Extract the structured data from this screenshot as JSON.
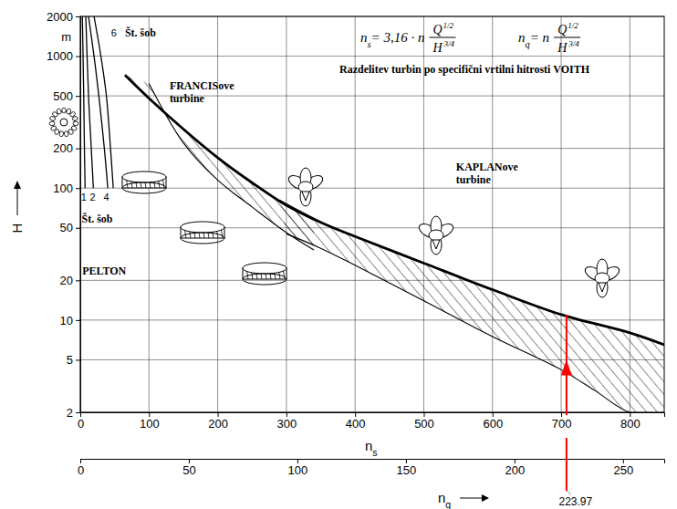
{
  "chart_data": {
    "type": "line",
    "title": "Razdelitev turbin po specifični vrtilni hitrosti VOITH",
    "formulas": [
      {
        "lhs": "ns= 3,16 · n",
        "num": "Q",
        "num_exp": "1/2",
        "den": "H",
        "den_exp": "3/4"
      },
      {
        "lhs": "nq= n",
        "num": "Q",
        "num_exp": "1/2",
        "den": "H",
        "den_exp": "3/4"
      }
    ],
    "x_label": "ns",
    "x2_label": "nq",
    "y_label": "H",
    "y_unit": "m",
    "xlim": [
      0,
      850
    ],
    "xticks": [
      0,
      100,
      200,
      300,
      400,
      500,
      600,
      700,
      800
    ],
    "x2lim": [
      0,
      269
    ],
    "x2ticks": [
      0,
      50,
      100,
      150,
      200,
      250
    ],
    "ylim": [
      2,
      2000
    ],
    "yticks": [
      2,
      5,
      10,
      20,
      50,
      100,
      200,
      500,
      1000,
      2000
    ],
    "log": "y",
    "grid": true,
    "series": [
      {
        "type": "band",
        "color": "#000000",
        "x_upper": [
          65,
          100,
          150,
          200,
          250,
          300,
          340
        ],
        "upper": [
          720,
          480,
          280,
          170,
          110,
          74,
          58
        ],
        "x_lower": [
          100,
          150,
          200,
          250,
          300,
          340
        ],
        "lower": [
          620,
          220,
          115,
          72,
          46,
          34
        ]
      },
      {
        "type": "band",
        "color": "#000000",
        "x_upper": [
          290,
          350,
          400,
          500,
          600,
          700,
          800,
          850
        ],
        "upper": [
          80,
          55,
          43,
          27,
          17,
          11,
          8,
          6.5
        ],
        "x_lower": [
          300,
          350,
          400,
          500,
          600,
          700,
          750,
          800,
          850
        ],
        "lower": [
          45,
          35,
          26,
          14,
          7.5,
          4.2,
          2.9,
          2,
          2
        ]
      },
      {
        "type": "line",
        "color": "#000000",
        "x": [
          3,
          5,
          6,
          7
        ],
        "values": [
          2000,
          500,
          200,
          100
        ]
      },
      {
        "type": "line",
        "color": "#000000",
        "x": [
          8,
          12,
          16,
          19
        ],
        "values": [
          2000,
          500,
          200,
          100
        ]
      },
      {
        "type": "line",
        "color": "#000000",
        "x": [
          12,
          20,
          27,
          35,
          40
        ],
        "values": [
          2000,
          1000,
          500,
          200,
          100
        ]
      },
      {
        "type": "line",
        "color": "#000000",
        "x": [
          20,
          30,
          38,
          44,
          48
        ],
        "values": [
          2000,
          1000,
          500,
          200,
          100
        ]
      }
    ],
    "annotations": [
      {
        "text": "FRANCISove turbine",
        "x": 130,
        "y": 560
      },
      {
        "text": "KAPLANove turbine",
        "x": 547,
        "y": 135
      },
      {
        "text": "PELTON",
        "x": 3,
        "y": 22
      },
      {
        "text": "6",
        "x": 49,
        "y": 1400
      },
      {
        "text": "Št. šob",
        "x": 65,
        "y": 1400
      },
      {
        "text": "1",
        "x": 5,
        "y": 80
      },
      {
        "text": "2",
        "x": 18,
        "y": 80
      },
      {
        "text": "4",
        "x": 38,
        "y": 80
      },
      {
        "text": "Št. šob",
        "x": 2,
        "y": 55
      }
    ],
    "marker_line": {
      "label": "223.97",
      "nq": 223.97,
      "h_end": 11,
      "arrow_h": 5,
      "color": "#ff0000"
    }
  }
}
